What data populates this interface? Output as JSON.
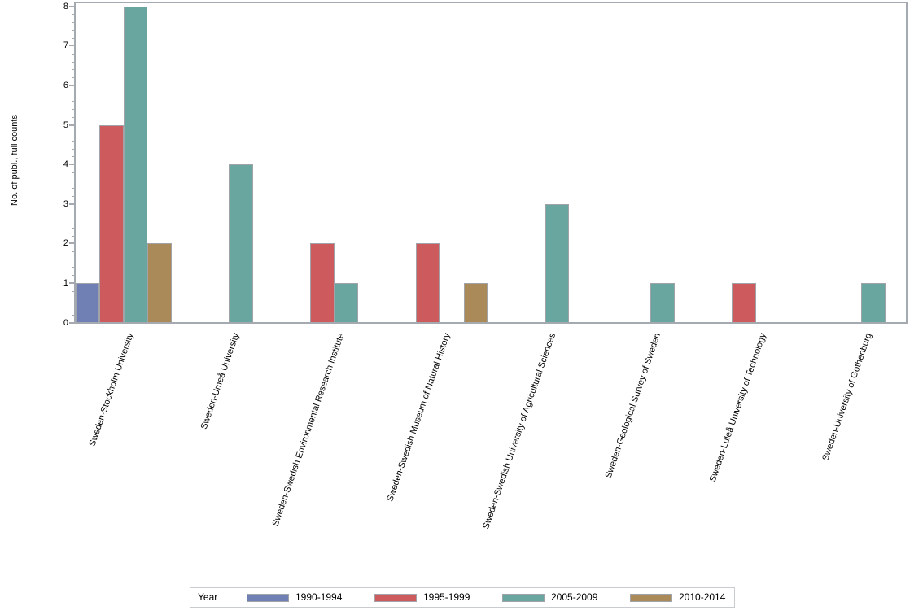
{
  "chart_data": {
    "type": "bar",
    "title": "",
    "xlabel": "",
    "ylabel": "No. of publ., full counts",
    "ylim": [
      0,
      8
    ],
    "y_major_ticks": [
      0,
      1,
      2,
      3,
      4,
      5,
      6,
      7,
      8
    ],
    "y_minor_divisions": 5,
    "grid": false,
    "legend": {
      "title": "Year",
      "position": "bottom"
    },
    "categories": [
      "Sweden-Stockholm University",
      "Sweden-Umeå University",
      "Sweden-Swedish Environmental Research Institute",
      "Sweden-Swedish Museum of Natural History",
      "Sweden-Swedish University of Agricultural Sciences",
      "Sweden-Geological Survey of Sweden",
      "Sweden-Luleå University of Technology",
      "Sweden-University of Gothenburg"
    ],
    "series": [
      {
        "name": "1990-1994",
        "color": "#7180b4",
        "values": [
          1,
          null,
          null,
          null,
          null,
          null,
          null,
          null
        ]
      },
      {
        "name": "1995-1999",
        "color": "#cd5a5c",
        "values": [
          5,
          null,
          2,
          2,
          null,
          null,
          1,
          null
        ]
      },
      {
        "name": "2005-2009",
        "color": "#69a6a0",
        "values": [
          8,
          4,
          1,
          null,
          3,
          1,
          null,
          1
        ]
      },
      {
        "name": "2010-2014",
        "color": "#aa8a58",
        "values": [
          2,
          null,
          null,
          1,
          null,
          null,
          null,
          null
        ]
      }
    ]
  },
  "colors": {
    "axis": "#a4aab0",
    "bar_border": "#a0a4a8",
    "legend_border": "#c9cccf",
    "text": "#000000",
    "background": "#ffffff"
  }
}
